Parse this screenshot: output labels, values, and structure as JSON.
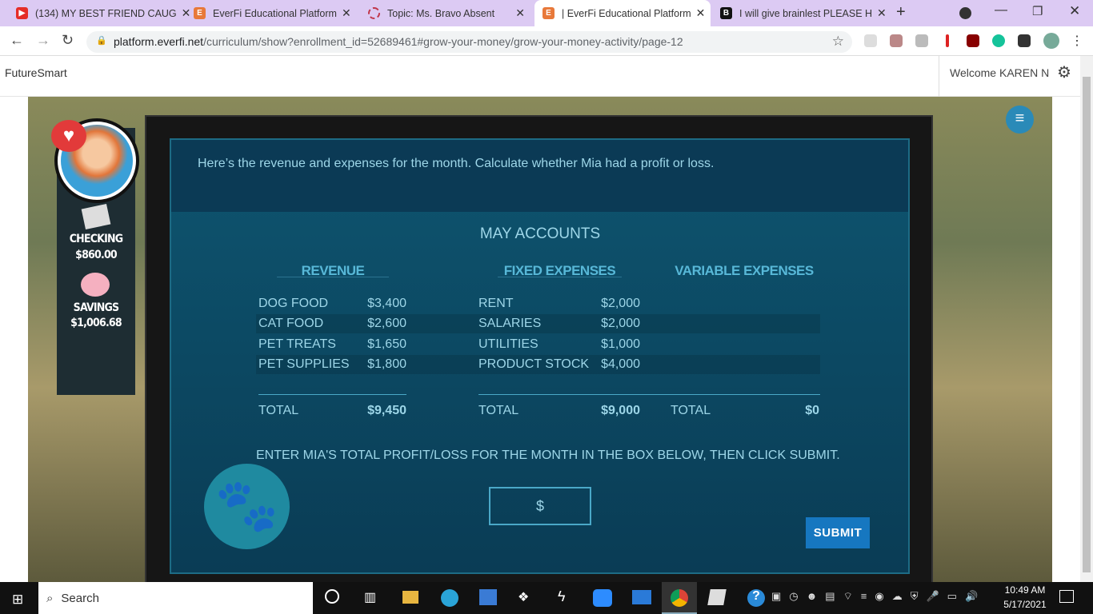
{
  "browser": {
    "tabs": [
      {
        "title": "(134) MY BEST FRIEND CAUG",
        "icon": "youtube-icon",
        "color": "#e52d27"
      },
      {
        "title": "EverFi Educational Platform",
        "icon": "everfi-icon",
        "color": "#e8793a"
      },
      {
        "title": "Topic: Ms. Bravo Absent",
        "icon": "loading-icon",
        "color": "#c0364a"
      },
      {
        "title": "| EverFi Educational Platform",
        "icon": "everfi-icon",
        "color": "#e8793a",
        "active": true
      },
      {
        "title": "I will give brainlest PLEASE H",
        "icon": "brainly-icon",
        "color": "#111"
      }
    ],
    "url_host": "platform.everfi.net",
    "url_path": "/curriculum/show?enrollment_id=52689461#grow-your-money/grow-your-money-activity/page-12"
  },
  "header": {
    "logo_alt": "FutureSmart",
    "welcome": "Welcome KAREN N"
  },
  "player": {
    "checking_label": "CHECKING",
    "checking_value": "$860.00",
    "savings_label": "SAVINGS",
    "savings_value": "$1,006.68"
  },
  "activity": {
    "instruction": "Here’s the revenue and expenses for the month. Calculate whether Mia had a profit or loss.",
    "title": "MAY ACCOUNTS",
    "revenue": {
      "header": "REVENUE",
      "rows": [
        [
          "DOG FOOD",
          "$3,400"
        ],
        [
          "CAT FOOD",
          "$2,600"
        ],
        [
          "PET TREATS",
          "$1,650"
        ],
        [
          "PET SUPPLIES",
          "$1,800"
        ]
      ],
      "total_label": "TOTAL",
      "total": "$9,450"
    },
    "fixed": {
      "header": "FIXED EXPENSES",
      "rows": [
        [
          "RENT",
          "$2,000"
        ],
        [
          "SALARIES",
          "$2,000"
        ],
        [
          "UTILITIES",
          "$1,000"
        ],
        [
          "PRODUCT STOCK",
          "$4,000"
        ]
      ],
      "total_label": "TOTAL",
      "total": "$9,000"
    },
    "variable": {
      "header": "VARIABLE EXPENSES",
      "total_label": "TOTAL",
      "total": "$0"
    },
    "prompt": "ENTER MIA'S TOTAL PROFIT/LOSS FOR THE MONTH IN THE BOX BELOW, THEN CLICK SUBMIT.",
    "input_prefix": "$",
    "input_value": "",
    "submit": "SUBMIT"
  },
  "taskbar": {
    "search": "Search",
    "time": "10:49 AM",
    "date": "5/17/2021"
  }
}
